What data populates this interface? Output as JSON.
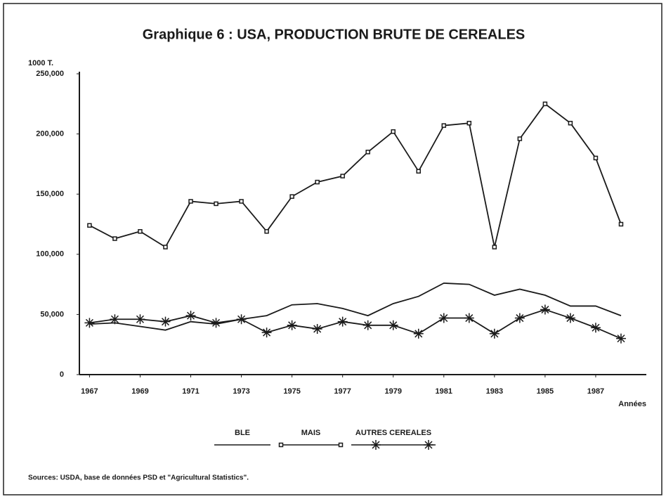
{
  "chart_data": {
    "type": "line",
    "title": "Graphique 6 : USA, PRODUCTION BRUTE DE CEREALES",
    "y_label": "1000 T.",
    "x_label": "Années",
    "source": "Sources: USDA, base de données PSD et \"Agricultural Statistics\".",
    "x": [
      1967,
      1968,
      1969,
      1970,
      1971,
      1972,
      1973,
      1974,
      1975,
      1976,
      1977,
      1978,
      1979,
      1980,
      1981,
      1982,
      1983,
      1984,
      1985,
      1986,
      1987,
      1988
    ],
    "xlim": [
      1966.6,
      1989
    ],
    "xticks": [
      1967,
      1969,
      1971,
      1973,
      1975,
      1977,
      1979,
      1981,
      1983,
      1985,
      1987
    ],
    "ylim": [
      0,
      250000
    ],
    "yticks": [
      0,
      {
        "value": 50000,
        "label": "50,000"
      },
      {
        "value": 100000,
        "label": "100,000"
      },
      {
        "value": 150000,
        "label": "150,000"
      },
      {
        "value": 200000,
        "label": "200,000"
      },
      {
        "value": 250000,
        "label": "250,000"
      }
    ],
    "grid": false,
    "series": [
      {
        "name": "BLE",
        "color": "#1a1a1a",
        "marker": "none",
        "values": [
          42000,
          43000,
          40000,
          37000,
          44000,
          42000,
          46000,
          49000,
          58000,
          59000,
          55000,
          49000,
          59000,
          65000,
          76000,
          75000,
          66000,
          71000,
          66000,
          57000,
          57000,
          49000
        ]
      },
      {
        "name": "MAIS",
        "color": "#1a1a1a",
        "marker": "square",
        "values": [
          124000,
          113000,
          119000,
          106000,
          144000,
          142000,
          144000,
          119000,
          148000,
          160000,
          165000,
          185000,
          202000,
          169000,
          207000,
          209000,
          106000,
          196000,
          225000,
          209000,
          180000,
          125000
        ]
      },
      {
        "name": "AUTRES CEREALES",
        "color": "#1a1a1a",
        "marker": "asterisk",
        "values": [
          43000,
          46000,
          46000,
          44000,
          49000,
          43000,
          46000,
          35000,
          41000,
          38000,
          44000,
          41000,
          41000,
          34000,
          47000,
          47000,
          34000,
          47000,
          54000,
          47000,
          39000,
          30000
        ]
      }
    ]
  }
}
